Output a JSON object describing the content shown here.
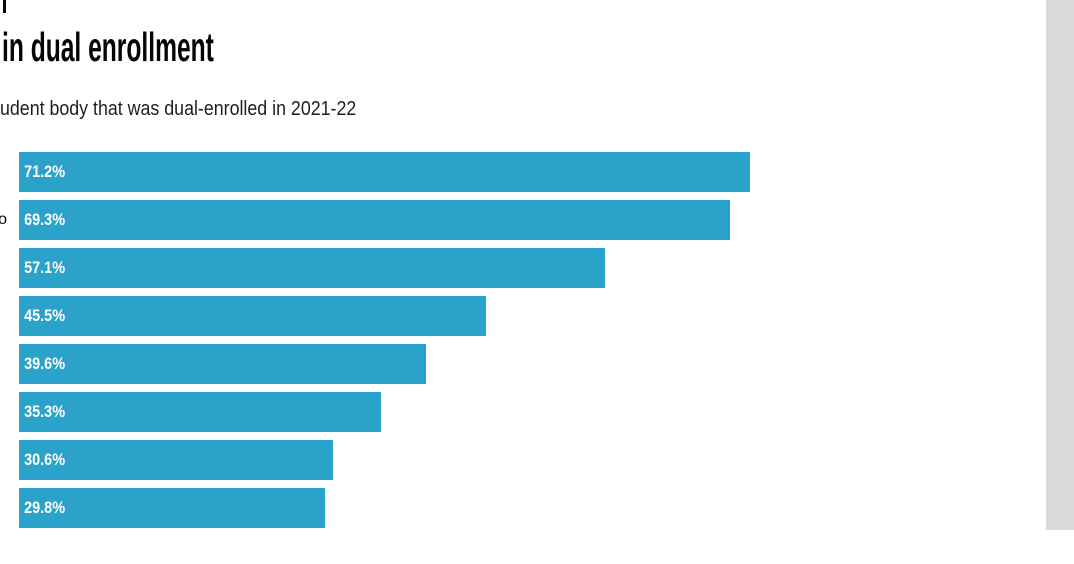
{
  "page": {
    "background": "#ffffff"
  },
  "header": {
    "title_fragment": "in dual enrollment",
    "subtitle_fragment": "udent body that was dual-enrolled in 2021-22"
  },
  "edge_fragments": {
    "category_label_fragment": "o"
  },
  "scrollbar": {
    "color": "#d9d9d9"
  },
  "chart_data": {
    "type": "bar",
    "orientation": "horizontal",
    "title": "in dual enrollment",
    "subtitle": "udent body that was dual-enrolled in 2021-22",
    "categories": [
      "",
      "o",
      "",
      "",
      "",
      "",
      "",
      ""
    ],
    "values": [
      71.2,
      69.3,
      57.1,
      45.5,
      39.6,
      35.3,
      30.6,
      29.8
    ],
    "value_labels": [
      "71.2%",
      "69.3%",
      "57.1%",
      "45.5%",
      "39.6%",
      "35.3%",
      "30.6%",
      "29.8%"
    ],
    "value_suffix": "%",
    "bar_color": "#2BA2CA",
    "label_color": "#ffffff",
    "grid": false,
    "legend": false
  }
}
